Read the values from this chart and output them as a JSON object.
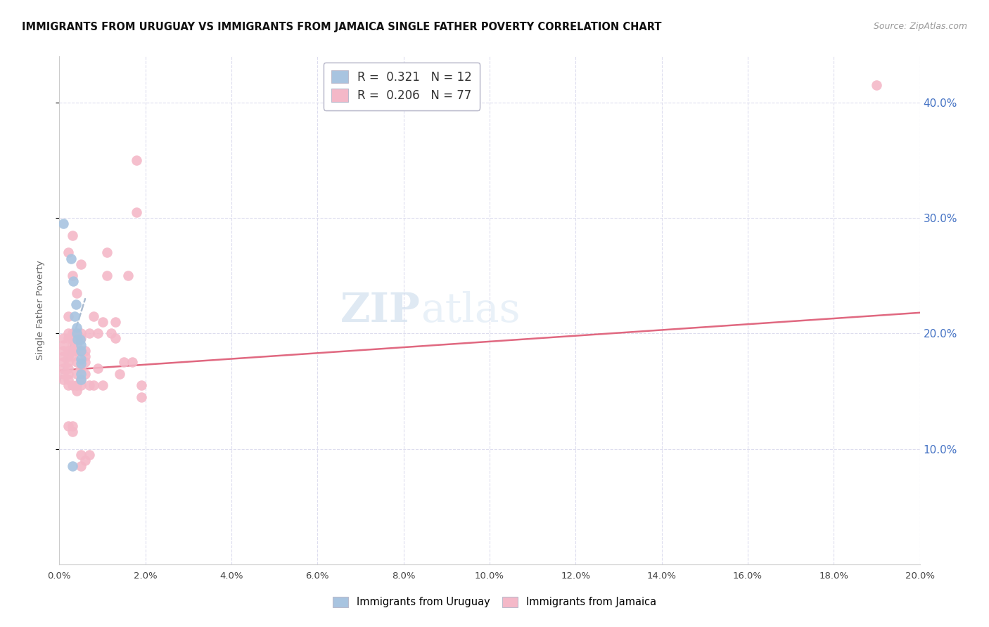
{
  "title": "IMMIGRANTS FROM URUGUAY VS IMMIGRANTS FROM JAMAICA SINGLE FATHER POVERTY CORRELATION CHART",
  "source": "Source: ZipAtlas.com",
  "ylabel": "Single Father Poverty",
  "uruguay_color": "#a8c4e0",
  "jamaica_color": "#f4b8c8",
  "uruguay_trendline_color": "#aabbd0",
  "jamaica_trendline_color": "#e06880",
  "background_color": "#ffffff",
  "watermark": "ZIPatlas",
  "xlim": [
    0,
    0.2
  ],
  "ylim": [
    0,
    0.44
  ],
  "x_ticks": [
    0.0,
    0.02,
    0.04,
    0.06,
    0.08,
    0.1,
    0.12,
    0.14,
    0.16,
    0.18,
    0.2
  ],
  "y_ticks": [
    0.1,
    0.2,
    0.3,
    0.4
  ],
  "uruguay_trend_x": [
    0.0,
    0.006
  ],
  "uruguay_trend_y": [
    0.158,
    0.23
  ],
  "jamaica_trend_x": [
    0.0,
    0.2
  ],
  "jamaica_trend_y": [
    0.168,
    0.218
  ],
  "uruguay_points": [
    [
      0.001,
      0.295
    ],
    [
      0.0028,
      0.265
    ],
    [
      0.0032,
      0.245
    ],
    [
      0.0038,
      0.225
    ],
    [
      0.0035,
      0.215
    ],
    [
      0.004,
      0.205
    ],
    [
      0.004,
      0.2
    ],
    [
      0.0042,
      0.195
    ],
    [
      0.0048,
      0.195
    ],
    [
      0.005,
      0.19
    ],
    [
      0.005,
      0.185
    ],
    [
      0.005,
      0.178
    ],
    [
      0.005,
      0.174
    ],
    [
      0.005,
      0.165
    ],
    [
      0.005,
      0.16
    ],
    [
      0.003,
      0.085
    ]
  ],
  "jamaica_points": [
    [
      0.001,
      0.196
    ],
    [
      0.001,
      0.19
    ],
    [
      0.001,
      0.185
    ],
    [
      0.001,
      0.18
    ],
    [
      0.001,
      0.175
    ],
    [
      0.001,
      0.17
    ],
    [
      0.001,
      0.165
    ],
    [
      0.001,
      0.16
    ],
    [
      0.002,
      0.27
    ],
    [
      0.002,
      0.215
    ],
    [
      0.002,
      0.2
    ],
    [
      0.002,
      0.196
    ],
    [
      0.002,
      0.185
    ],
    [
      0.002,
      0.18
    ],
    [
      0.002,
      0.175
    ],
    [
      0.002,
      0.17
    ],
    [
      0.002,
      0.165
    ],
    [
      0.002,
      0.16
    ],
    [
      0.002,
      0.155
    ],
    [
      0.002,
      0.12
    ],
    [
      0.003,
      0.285
    ],
    [
      0.003,
      0.25
    ],
    [
      0.003,
      0.2
    ],
    [
      0.003,
      0.196
    ],
    [
      0.003,
      0.195
    ],
    [
      0.003,
      0.19
    ],
    [
      0.003,
      0.185
    ],
    [
      0.003,
      0.18
    ],
    [
      0.003,
      0.155
    ],
    [
      0.003,
      0.12
    ],
    [
      0.003,
      0.115
    ],
    [
      0.004,
      0.235
    ],
    [
      0.004,
      0.2
    ],
    [
      0.004,
      0.196
    ],
    [
      0.004,
      0.19
    ],
    [
      0.004,
      0.185
    ],
    [
      0.004,
      0.175
    ],
    [
      0.004,
      0.165
    ],
    [
      0.004,
      0.155
    ],
    [
      0.004,
      0.15
    ],
    [
      0.005,
      0.26
    ],
    [
      0.005,
      0.2
    ],
    [
      0.005,
      0.196
    ],
    [
      0.005,
      0.185
    ],
    [
      0.005,
      0.17
    ],
    [
      0.005,
      0.16
    ],
    [
      0.005,
      0.155
    ],
    [
      0.005,
      0.095
    ],
    [
      0.005,
      0.085
    ],
    [
      0.006,
      0.185
    ],
    [
      0.006,
      0.18
    ],
    [
      0.006,
      0.175
    ],
    [
      0.006,
      0.165
    ],
    [
      0.006,
      0.09
    ],
    [
      0.007,
      0.2
    ],
    [
      0.007,
      0.155
    ],
    [
      0.007,
      0.095
    ],
    [
      0.008,
      0.215
    ],
    [
      0.008,
      0.155
    ],
    [
      0.009,
      0.2
    ],
    [
      0.009,
      0.17
    ],
    [
      0.01,
      0.21
    ],
    [
      0.01,
      0.155
    ],
    [
      0.011,
      0.27
    ],
    [
      0.011,
      0.25
    ],
    [
      0.012,
      0.2
    ],
    [
      0.013,
      0.21
    ],
    [
      0.013,
      0.196
    ],
    [
      0.014,
      0.165
    ],
    [
      0.015,
      0.175
    ],
    [
      0.016,
      0.25
    ],
    [
      0.017,
      0.175
    ],
    [
      0.018,
      0.35
    ],
    [
      0.018,
      0.305
    ],
    [
      0.019,
      0.155
    ],
    [
      0.019,
      0.145
    ],
    [
      0.19,
      0.415
    ]
  ]
}
